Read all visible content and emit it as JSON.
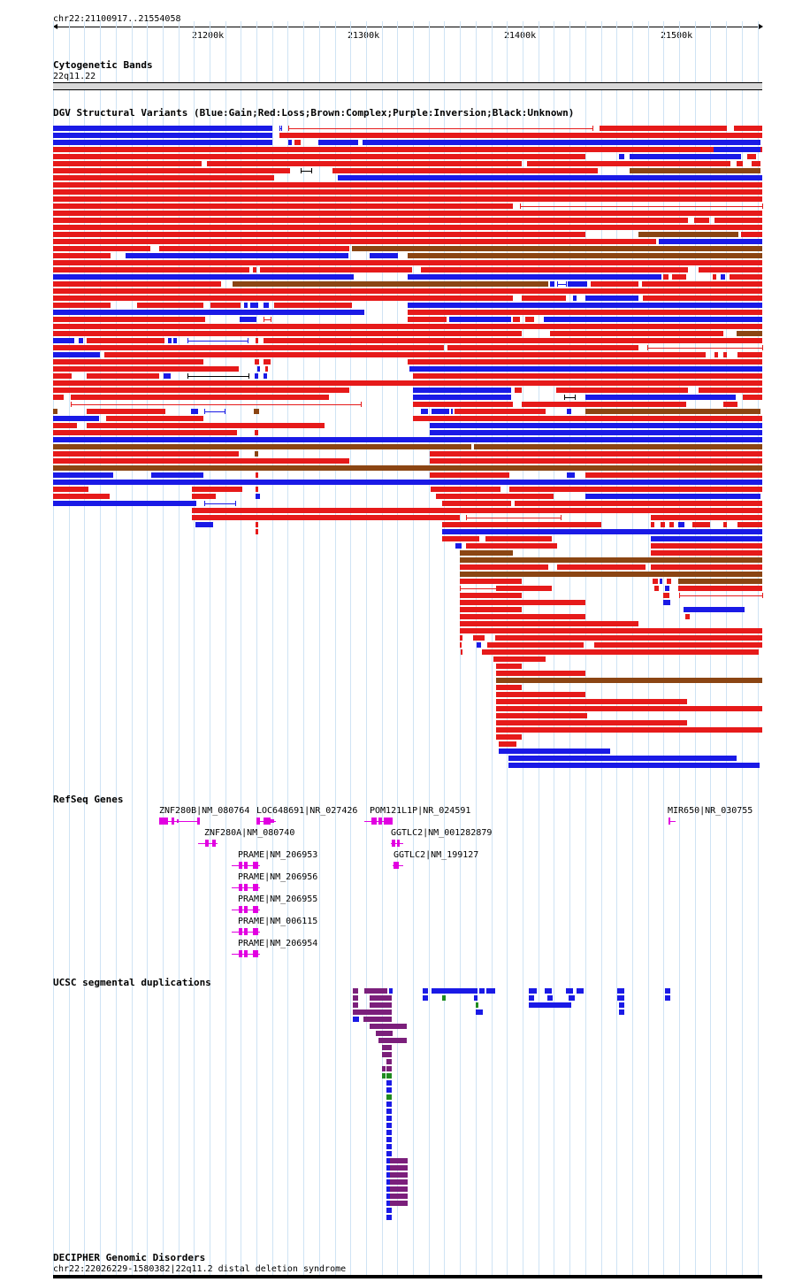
{
  "locus": "chr22:21100917..21554058",
  "ruler": {
    "ticks": [
      "21200k",
      "21300k",
      "21400k",
      "21500k"
    ]
  },
  "tracks": {
    "cytoband": {
      "title": "Cytogenetic Bands",
      "band": "22q11.22"
    },
    "dgv": {
      "title": "DGV Structural Variants (Blue:Gain;Red:Loss;Brown:Complex;Purple:Inversion;Black:Unknown)",
      "colors": {
        "gain": "#1a1ae6",
        "loss": "#e61a1a",
        "complex": "#8b4513",
        "inversion": "#800080",
        "unknown": "#000000"
      }
    },
    "refseq": {
      "title": "RefSeq Genes",
      "genes": [
        "ZNF280B|NM_080764",
        "LOC648691|NR_027426",
        "POM121L1P|NR_024591",
        "MIR650|NR_030755",
        "ZNF280A|NM_080740",
        "GGTLC2|NM_001282879",
        "PRAME|NM_206953",
        "GGTLC2|NM_199127",
        "PRAME|NM_206956",
        "PRAME|NM_206955",
        "PRAME|NM_006115",
        "PRAME|NM_206954"
      ],
      "color": "#e100e1"
    },
    "segdup": {
      "title": "UCSC segmental duplications",
      "colors": {
        "high": "#7b1f7b",
        "mid": "#1a1ae6",
        "low": "#1f8b1f"
      }
    },
    "decipher": {
      "title": "DECIPHER Genomic Disorders",
      "item": "chr22:22026229-1580382|22q11.2 distal deletion syndrome"
    }
  }
}
